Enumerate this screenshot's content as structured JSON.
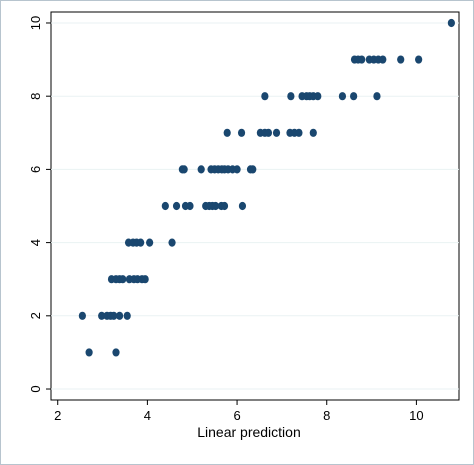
{
  "chart_data": {
    "type": "scatter",
    "xlabel": "Linear prediction",
    "ylabel": "",
    "xlim": [
      1.85,
      10.95
    ],
    "ylim": [
      -0.3,
      10.3
    ],
    "xticks": [
      2,
      4,
      6,
      8,
      10
    ],
    "yticks": [
      0,
      2,
      4,
      6,
      8,
      10
    ],
    "grid": "y-major",
    "marker_color": "#1a476f",
    "series": [
      {
        "points": [
          [
            2.55,
            2
          ],
          [
            2.7,
            1
          ],
          [
            2.98,
            2
          ],
          [
            3.1,
            2
          ],
          [
            3.18,
            2
          ],
          [
            3.25,
            2
          ],
          [
            3.3,
            1
          ],
          [
            3.38,
            2
          ],
          [
            3.55,
            2
          ],
          [
            3.2,
            3
          ],
          [
            3.3,
            3
          ],
          [
            3.38,
            3
          ],
          [
            3.45,
            3
          ],
          [
            3.6,
            3
          ],
          [
            3.7,
            3
          ],
          [
            3.78,
            3
          ],
          [
            3.88,
            3
          ],
          [
            3.95,
            3
          ],
          [
            3.58,
            4
          ],
          [
            3.68,
            4
          ],
          [
            3.76,
            4
          ],
          [
            3.85,
            4
          ],
          [
            4.05,
            4
          ],
          [
            4.55,
            4
          ],
          [
            4.4,
            5
          ],
          [
            4.65,
            5
          ],
          [
            4.85,
            5
          ],
          [
            4.95,
            5
          ],
          [
            5.3,
            5
          ],
          [
            5.38,
            5
          ],
          [
            5.45,
            5
          ],
          [
            5.52,
            5
          ],
          [
            5.65,
            5
          ],
          [
            5.72,
            5
          ],
          [
            6.12,
            5
          ],
          [
            4.78,
            6
          ],
          [
            4.82,
            6
          ],
          [
            5.2,
            6
          ],
          [
            5.42,
            6
          ],
          [
            5.5,
            6
          ],
          [
            5.58,
            6
          ],
          [
            5.66,
            6
          ],
          [
            5.72,
            6
          ],
          [
            5.8,
            6
          ],
          [
            5.9,
            6
          ],
          [
            6.0,
            6
          ],
          [
            6.3,
            6
          ],
          [
            6.35,
            6
          ],
          [
            5.78,
            7
          ],
          [
            6.1,
            7
          ],
          [
            6.52,
            7
          ],
          [
            6.62,
            7
          ],
          [
            6.7,
            7
          ],
          [
            6.88,
            7
          ],
          [
            7.18,
            7
          ],
          [
            7.28,
            7
          ],
          [
            7.38,
            7
          ],
          [
            7.7,
            7
          ],
          [
            6.62,
            8
          ],
          [
            7.2,
            8
          ],
          [
            7.45,
            8
          ],
          [
            7.55,
            8
          ],
          [
            7.62,
            8
          ],
          [
            7.7,
            8
          ],
          [
            7.8,
            8
          ],
          [
            8.35,
            8
          ],
          [
            8.6,
            8
          ],
          [
            9.12,
            8
          ],
          [
            8.62,
            9
          ],
          [
            8.7,
            9
          ],
          [
            8.78,
            9
          ],
          [
            8.95,
            9
          ],
          [
            9.05,
            9
          ],
          [
            9.15,
            9
          ],
          [
            9.25,
            9
          ],
          [
            9.65,
            9
          ],
          [
            10.05,
            9
          ],
          [
            10.78,
            10
          ]
        ]
      }
    ]
  }
}
